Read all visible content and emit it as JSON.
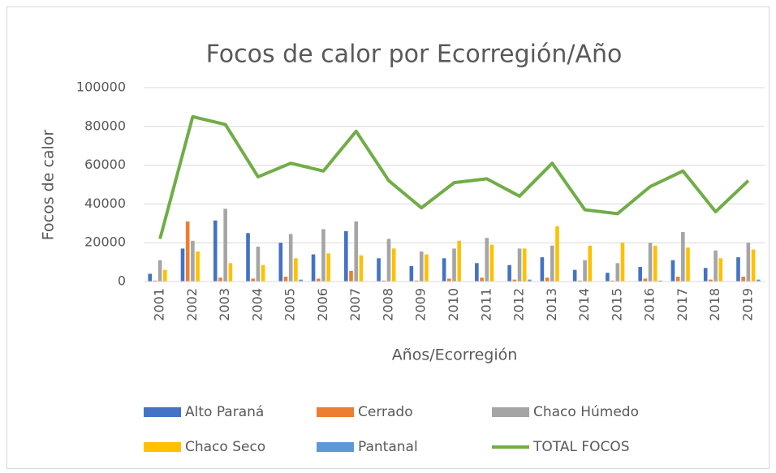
{
  "chart_data": {
    "type": "bar",
    "title": "Focos de calor por Ecorregión/Año",
    "x_label": "Años/Ecorregión",
    "y_label": "Focos de calor",
    "categories": [
      "2001",
      "2002",
      "2003",
      "2004",
      "2005",
      "2006",
      "2007",
      "2008",
      "2009",
      "2010",
      "2011",
      "2012",
      "2013",
      "2014",
      "2015",
      "2016",
      "2017",
      "2018",
      "2019"
    ],
    "ylim": [
      0,
      100000
    ],
    "yticks": [
      0,
      20000,
      40000,
      60000,
      80000,
      100000
    ],
    "grid": true,
    "legend": "bottom",
    "series": [
      {
        "name": "Alto Paraná",
        "color": "#4472c4",
        "values": [
          4000,
          17000,
          31500,
          25000,
          20000,
          14000,
          26000,
          12000,
          8000,
          12000,
          9500,
          8500,
          12500,
          6000,
          4500,
          7500,
          11000,
          7000,
          12500
        ]
      },
      {
        "name": "Cerrado",
        "color": "#ed7d31",
        "values": [
          500,
          31000,
          2000,
          1500,
          2500,
          1500,
          5500,
          500,
          500,
          1500,
          2000,
          1000,
          2000,
          500,
          500,
          1500,
          2500,
          1000,
          2500
        ]
      },
      {
        "name": "Chaco Húmedo",
        "color": "#a5a5a5",
        "values": [
          11000,
          21000,
          37500,
          18000,
          24500,
          27000,
          31000,
          22000,
          15500,
          17000,
          22500,
          17000,
          18500,
          11000,
          9500,
          20000,
          25500,
          16000,
          20000
        ]
      },
      {
        "name": "Chaco Seco",
        "color": "#ffc000",
        "values": [
          6000,
          15500,
          9500,
          8500,
          12000,
          14500,
          13500,
          17000,
          14000,
          21000,
          19000,
          17000,
          28500,
          18500,
          20000,
          18500,
          17500,
          12000,
          16500
        ]
      },
      {
        "name": "Pantanal",
        "color": "#5b9bd5",
        "values": [
          200,
          200,
          200,
          200,
          1000,
          200,
          200,
          200,
          200,
          200,
          200,
          1000,
          200,
          200,
          200,
          500,
          200,
          200,
          1000
        ]
      },
      {
        "name": "TOTAL FOCOS",
        "color": "#70ad47",
        "type": "line",
        "values": [
          22000,
          85000,
          81000,
          54000,
          61000,
          57000,
          77500,
          52000,
          38000,
          51000,
          53000,
          44000,
          61000,
          37000,
          35000,
          49000,
          57000,
          36000,
          52000
        ]
      }
    ]
  }
}
